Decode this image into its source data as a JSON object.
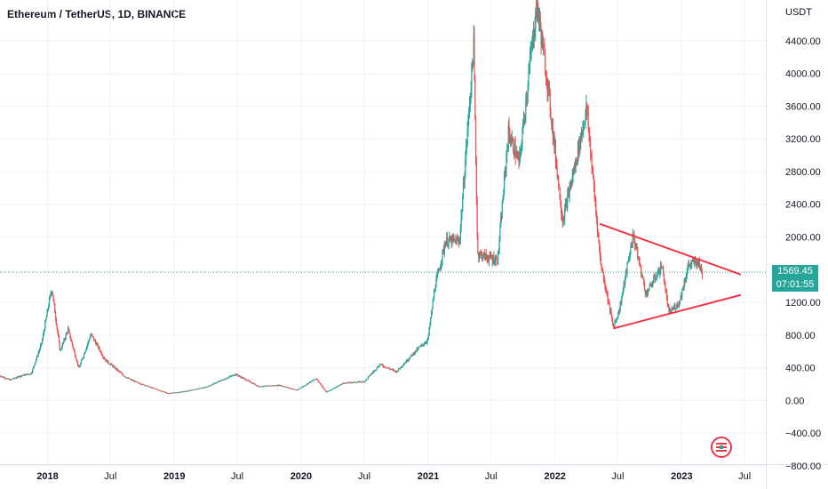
{
  "header": {
    "title": "Ethereum / TetherUS, 1D, BINANCE"
  },
  "price_axis": {
    "unit": "USDT"
  },
  "last_price": {
    "value": "1569.45",
    "countdown": "07:01:55"
  },
  "colors": {
    "up": "#26a69a",
    "down": "#ef5350",
    "grid": "#f0f3fa",
    "trendline": "#f23645",
    "last_price_line": "#26a69a"
  },
  "chart_data": {
    "type": "candlestick",
    "title": "Ethereum / TetherUS, 1D, BINANCE",
    "ylabel": "USDT",
    "ylim": [
      -900,
      4900
    ],
    "xlim": [
      "2017-08-17",
      "2023-08-31"
    ],
    "y_ticks": [
      "4400.00",
      "4000.00",
      "3600.00",
      "3200.00",
      "2800.00",
      "2400.00",
      "2000.00",
      "1200.00",
      "800.00",
      "400.00",
      "0.00",
      "−400.00",
      "−800.00"
    ],
    "y_tick_values": [
      4400,
      4000,
      3600,
      3200,
      2800,
      2400,
      2000,
      1200,
      800,
      400,
      0,
      -400,
      -800
    ],
    "x_ticks": [
      {
        "label": "2018",
        "date": "2018-01-01",
        "bold": true
      },
      {
        "label": "Jul",
        "date": "2018-07-01",
        "bold": false
      },
      {
        "label": "2019",
        "date": "2019-01-01",
        "bold": true
      },
      {
        "label": "Jul",
        "date": "2019-07-01",
        "bold": false
      },
      {
        "label": "2020",
        "date": "2020-01-01",
        "bold": true
      },
      {
        "label": "Jul",
        "date": "2020-07-01",
        "bold": false
      },
      {
        "label": "2021",
        "date": "2021-01-01",
        "bold": true
      },
      {
        "label": "Jul",
        "date": "2021-07-01",
        "bold": false
      },
      {
        "label": "2022",
        "date": "2022-01-01",
        "bold": true
      },
      {
        "label": "Jul",
        "date": "2022-07-01",
        "bold": false
      },
      {
        "label": "2023",
        "date": "2023-01-01",
        "bold": true
      },
      {
        "label": "Jul",
        "date": "2023-07-01",
        "bold": false
      }
    ],
    "price_path": [
      [
        "2017-08-17",
        300
      ],
      [
        "2017-09-15",
        250
      ],
      [
        "2017-10-15",
        300
      ],
      [
        "2017-11-15",
        330
      ],
      [
        "2017-12-15",
        700
      ],
      [
        "2018-01-13",
        1380
      ],
      [
        "2018-02-06",
        600
      ],
      [
        "2018-03-01",
        870
      ],
      [
        "2018-04-01",
        390
      ],
      [
        "2018-05-06",
        810
      ],
      [
        "2018-06-15",
        500
      ],
      [
        "2018-08-15",
        280
      ],
      [
        "2018-09-15",
        220
      ],
      [
        "2018-11-20",
        120
      ],
      [
        "2018-12-15",
        85
      ],
      [
        "2019-02-01",
        110
      ],
      [
        "2019-04-01",
        160
      ],
      [
        "2019-06-26",
        320
      ],
      [
        "2019-09-01",
        170
      ],
      [
        "2019-11-01",
        185
      ],
      [
        "2019-12-20",
        125
      ],
      [
        "2020-02-14",
        270
      ],
      [
        "2020-03-13",
        100
      ],
      [
        "2020-05-01",
        210
      ],
      [
        "2020-07-01",
        230
      ],
      [
        "2020-08-15",
        440
      ],
      [
        "2020-10-01",
        350
      ],
      [
        "2020-11-25",
        600
      ],
      [
        "2020-12-31",
        740
      ],
      [
        "2021-01-20",
        1380
      ],
      [
        "2021-02-20",
        1950
      ],
      [
        "2021-04-01",
        1950
      ],
      [
        "2021-05-12",
        4350
      ],
      [
        "2021-05-23",
        1800
      ],
      [
        "2021-06-20",
        1750
      ],
      [
        "2021-07-20",
        1720
      ],
      [
        "2021-08-20",
        3280
      ],
      [
        "2021-09-20",
        2900
      ],
      [
        "2021-10-20",
        4100
      ],
      [
        "2021-11-10",
        4860
      ],
      [
        "2021-12-10",
        3900
      ],
      [
        "2022-01-23",
        2200
      ],
      [
        "2022-03-01",
        2900
      ],
      [
        "2022-04-02",
        3580
      ],
      [
        "2022-05-12",
        1700
      ],
      [
        "2022-06-18",
        900
      ],
      [
        "2022-07-05",
        1100
      ],
      [
        "2022-08-14",
        2030
      ],
      [
        "2022-09-20",
        1300
      ],
      [
        "2022-11-05",
        1650
      ],
      [
        "2022-11-25",
        1070
      ],
      [
        "2022-12-25",
        1200
      ],
      [
        "2023-01-20",
        1650
      ],
      [
        "2023-02-15",
        1700
      ],
      [
        "2023-03-01",
        1569
      ]
    ],
    "annotations": [
      {
        "type": "trendline",
        "from": [
          "2022-05-10",
          2160
        ],
        "to": [
          "2023-06-20",
          1540
        ]
      },
      {
        "type": "trendline",
        "from": [
          "2022-06-18",
          880
        ],
        "to": [
          "2023-06-20",
          1290
        ]
      },
      {
        "type": "horizontal_line",
        "value": 1569.45,
        "style": "dotted"
      }
    ],
    "grid": true,
    "legend": "none"
  }
}
